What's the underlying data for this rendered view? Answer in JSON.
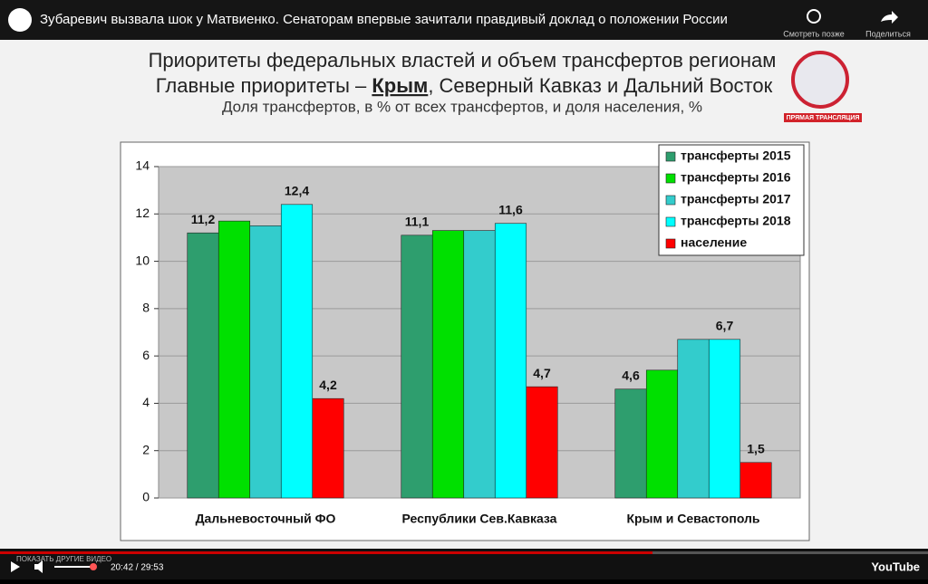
{
  "player": {
    "video_title": "Зубаревич вызвала шок у Матвиенко. Сенаторам впервые зачитали правдивый доклад о положении России",
    "watch_later": "Смотреть позже",
    "share": "Поделиться",
    "live_badge": "ПРЯМАЯ ТРАНСЛЯЦИЯ",
    "more_videos": "ПОКАЗАТЬ ДРУГИЕ ВИДЕО",
    "time": "20:42 / 29:53",
    "logo": "YouTube"
  },
  "chart_data": {
    "type": "bar",
    "title": "Приоритеты федеральных властей и объем трансфертов регионам",
    "subtitle_parts": [
      "Главные приоритеты – ",
      "Крым",
      ", Северный Кавказ и Дальний Восток"
    ],
    "note": "Доля трансфертов, в % от всех трансфертов, и доля населения, %",
    "categories": [
      "Дальневосточный ФО",
      "Республики Сев.Кавказа",
      "Крым и Севастополь"
    ],
    "series": [
      {
        "name": "трансферты 2015",
        "color": "#2e9e6e",
        "values": [
          11.2,
          11.1,
          4.6
        ],
        "value_labels": [
          "11,2",
          "11,1",
          "4,6"
        ]
      },
      {
        "name": "трансферты 2016",
        "color": "#00e000",
        "values": [
          11.7,
          11.3,
          5.4
        ]
      },
      {
        "name": "трансферты 2017",
        "color": "#33cccc",
        "values": [
          11.5,
          11.3,
          6.7
        ]
      },
      {
        "name": "трансферты 2018",
        "color": "#00ffff",
        "values": [
          12.4,
          11.6,
          6.7
        ],
        "value_labels": [
          "12,4",
          "11,6",
          "6,7"
        ]
      },
      {
        "name": "население",
        "color": "#ff0000",
        "values": [
          4.2,
          4.7,
          1.5
        ],
        "value_labels": [
          "4,2",
          "4,7",
          "1,5"
        ]
      }
    ],
    "ylim": [
      0,
      14
    ],
    "yticks": [
      0,
      2,
      4,
      6,
      8,
      10,
      12,
      14
    ],
    "grid": true,
    "legend": "top-right"
  }
}
